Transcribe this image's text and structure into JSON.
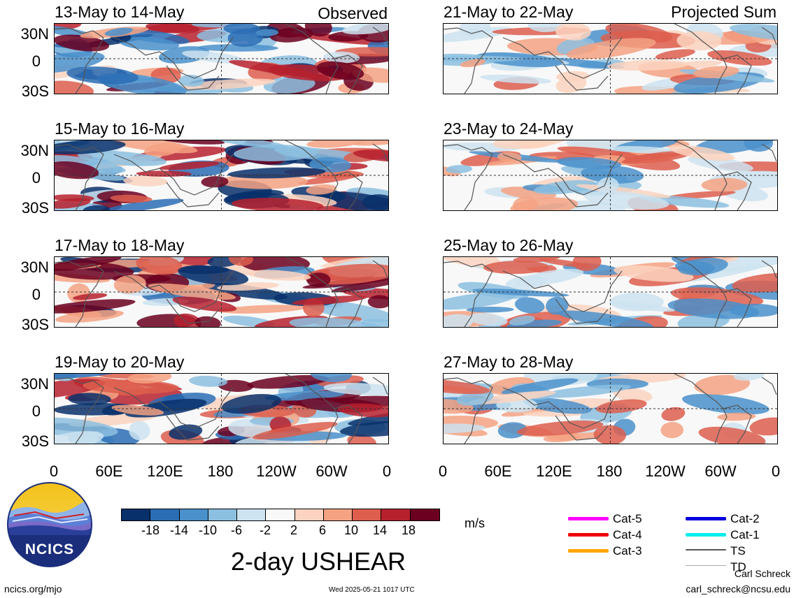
{
  "panels": [
    {
      "title": "13-May to 14-May",
      "tag": "Observed"
    },
    {
      "title": "15-May to 16-May",
      "tag": ""
    },
    {
      "title": "17-May to 18-May",
      "tag": ""
    },
    {
      "title": "19-May to 20-May",
      "tag": ""
    },
    {
      "title": "21-May to 22-May",
      "tag": "Projected Sum"
    },
    {
      "title": "23-May to 24-May",
      "tag": ""
    },
    {
      "title": "25-May to 26-May",
      "tag": ""
    },
    {
      "title": "27-May to 28-May",
      "tag": ""
    }
  ],
  "lat_labels": [
    "30N",
    "0",
    "30S"
  ],
  "lon_labels": [
    "0",
    "60E",
    "120E",
    "180",
    "120W",
    "60W",
    "0"
  ],
  "colorbar": {
    "labels": [
      "-18",
      "-14",
      "-10",
      "-6",
      "-2",
      "2",
      "6",
      "10",
      "14",
      "18"
    ],
    "colors": [
      "#08306b",
      "#2b6db5",
      "#4a90cb",
      "#8cc0e0",
      "#cde3f0",
      "#f8f8f8",
      "#fbd3c0",
      "#f4a282",
      "#dd5e4d",
      "#b7212e",
      "#6b0020"
    ],
    "units": "m/s"
  },
  "title": "2-day USHEAR",
  "logo": {
    "text": "NCICS"
  },
  "storm_legend": [
    {
      "label": "Cat-5",
      "color": "#ff00ff"
    },
    {
      "label": "Cat-4",
      "color": "#ee0000"
    },
    {
      "label": "Cat-3",
      "color": "#ffa500"
    },
    {
      "label": "Cat-2",
      "color": "#0000dd"
    },
    {
      "label": "Cat-1",
      "color": "#00eeee"
    },
    {
      "label": "TS",
      "color": "#555555"
    },
    {
      "label": "TD",
      "color": "#aaaaaa"
    }
  ],
  "footer": {
    "url": "ncics.org/mjo",
    "timestamp": "Wed 2025-05-21 1017 UTC",
    "author": "Carl Schreck",
    "email": "carl_schreck@ncsu.edu"
  }
}
